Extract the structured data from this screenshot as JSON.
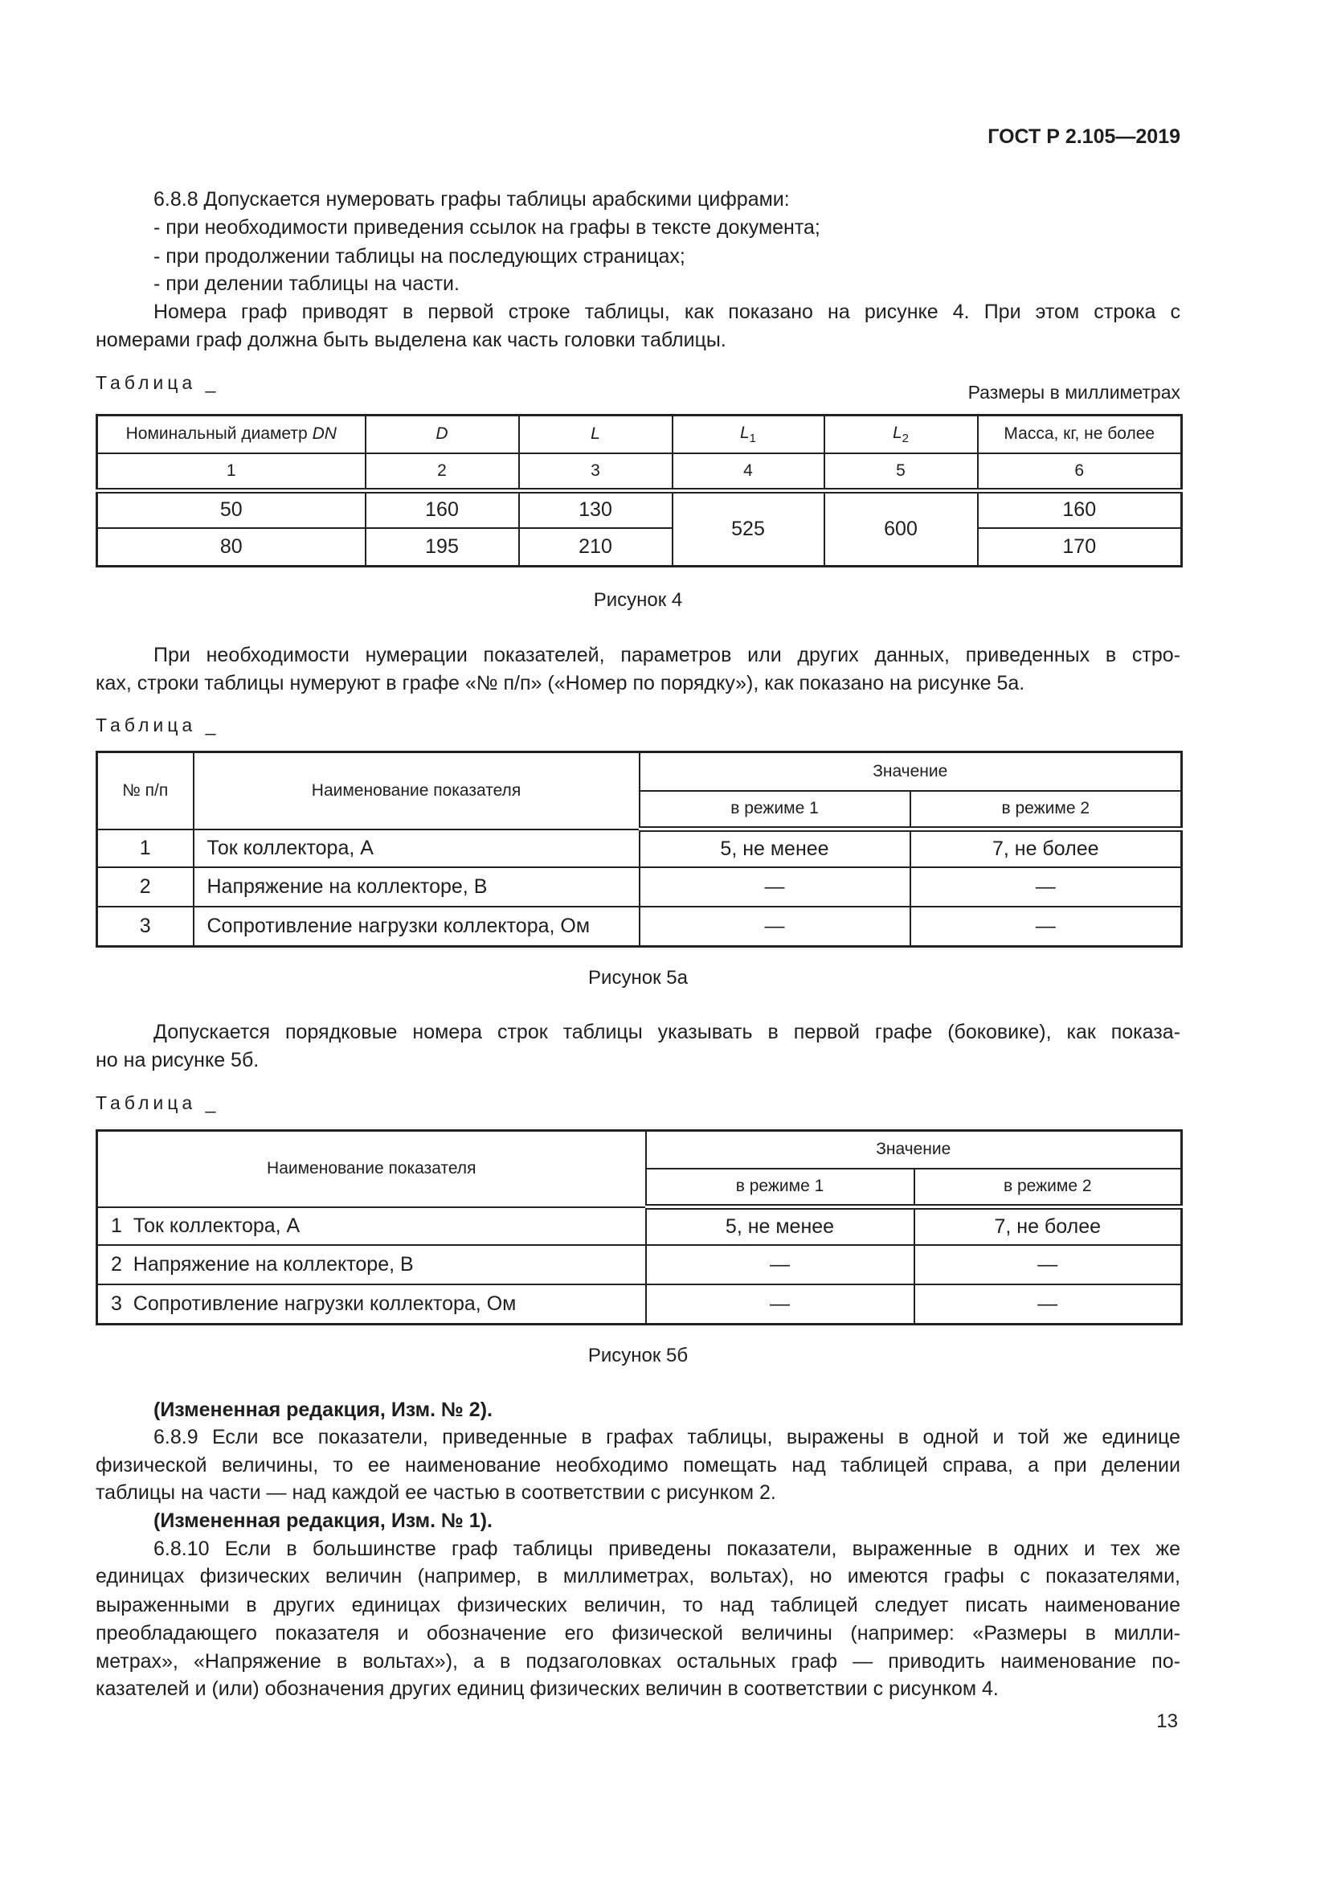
{
  "header": {
    "doc_code": "ГОСТ Р 2.105—2019"
  },
  "para_688": {
    "lines": [
      "6.8.8 Допускается нумеровать графы таблицы арабскими цифрами:",
      "- при необходимости приведения ссылок на графы в тексте документа;",
      "- при продолжении таблицы на последующих страницах;",
      "- при делении таблицы на части.",
      "Номера граф приводят в первой строке таблицы, как показано на рисунке 4. При этом строка с",
      "номерами граф должна быть выделена как часть головки таблицы."
    ]
  },
  "table1": {
    "label": "Таблица _",
    "units": "Размеры в миллиметрах",
    "headers": [
      {
        "text": "Номинальный диаметр ",
        "italic": "DN"
      },
      {
        "italic": "D"
      },
      {
        "italic": "L"
      },
      {
        "italic": "L",
        "sub": "1"
      },
      {
        "italic": "L",
        "sub": "2"
      },
      {
        "text": "Масса, кг, не более"
      }
    ],
    "numbers": [
      "1",
      "2",
      "3",
      "4",
      "5",
      "6"
    ],
    "rows": [
      [
        "50",
        "160",
        "130",
        "525",
        "600",
        "160"
      ],
      [
        "80",
        "195",
        "210",
        "170"
      ]
    ],
    "caption": "Рисунок 4"
  },
  "para_5a": {
    "lines": [
      "При необходимости нумерации показателей, параметров или других данных, приведенных в стро-",
      "ках, строки таблицы нумеруют в графе «№ п/п» («Номер по порядку»), как показано на рисунке 5а."
    ]
  },
  "table2": {
    "label": "Таблица _",
    "headers": {
      "num": "№ п/п",
      "name": "Наименование показателя",
      "value": "Значение",
      "mode1": "в режиме 1",
      "mode2": "в режиме 2"
    },
    "rows": [
      [
        "1",
        "Ток коллектора, А",
        "5, не менее",
        "7, не более"
      ],
      [
        "2",
        "Напряжение на коллекторе, В",
        "—",
        "—"
      ],
      [
        "3",
        "Сопротивление нагрузки коллектора, Ом",
        "—",
        "—"
      ]
    ],
    "caption": "Рисунок 5а"
  },
  "para_5b": {
    "lines": [
      "Допускается порядковые номера строк таблицы указывать в первой графе (боковике), как показа-",
      "но на рисунке 5б."
    ]
  },
  "table3": {
    "label": "Таблица _",
    "headers": {
      "name": "Наименование показателя",
      "value": "Значение",
      "mode1": "в режиме 1",
      "mode2": "в режиме 2"
    },
    "rows": [
      [
        "1  Ток коллектора, А",
        "5, не менее",
        "7, не более"
      ],
      [
        "2  Напряжение на коллекторе, В",
        "—",
        "—"
      ],
      [
        "3  Сопротивление нагрузки коллектора, Ом",
        "—",
        "—"
      ]
    ],
    "caption": "Рисунок 5б"
  },
  "para_689": {
    "lines": [
      "(Измененная редакция, Изм. № 2).",
      "6.8.9 Если все показатели, приведенные в графах таблицы, выражены в одной и той же единице",
      "физической величины, то ее наименование необходимо помещать над таблицей справа, а при делении",
      "таблицы на части — над каждой ее частью в соответствии с рисунком 2.",
      "(Измененная редакция, Изм. № 1).",
      "6.8.10 Если в большинстве граф таблицы приведены показатели, выраженные в одних и тех же",
      "единицах физических величин (например, в миллиметрах, вольтах), но имеются графы с показателями,",
      "выраженными в других единицах физических величин, то над таблицей следует писать наименование",
      "преобладающего показателя и обозначение его физической величины (например: «Размеры в милли-",
      "метрах», «Напряжение в вольтах»), а в подзаголовках остальных граф — приводить наименование по-",
      "казателей и (или) обозначения других единиц физических величин в соответствии с рисунком 4."
    ]
  },
  "footer": {
    "page_number": "13"
  }
}
